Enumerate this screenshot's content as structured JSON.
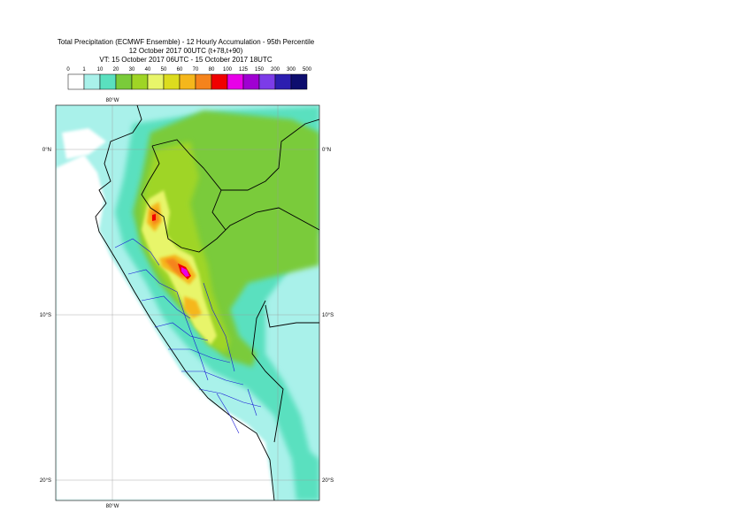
{
  "title": {
    "line1": "Total Precipitation (ECMWF Ensemble) - 12 Hourly Accumulation - 95th Percentile",
    "line2": "12 October 2017 00UTC (t+78,t+90)",
    "line3": "VT: 15 October 2017 06UTC - 15 October 2017 18UTC"
  },
  "legend": {
    "levels": [
      "0",
      "1",
      "10",
      "20",
      "30",
      "40",
      "50",
      "60",
      "70",
      "80",
      "100",
      "125",
      "150",
      "200",
      "300",
      "500"
    ],
    "colors": [
      "#ffffff",
      "#a9f1ea",
      "#5ae0bf",
      "#7acb3a",
      "#9fd525",
      "#e8f56a",
      "#dcdc1e",
      "#f5b71c",
      "#f5831c",
      "#f00000",
      "#e800e8",
      "#a000d2",
      "#7c3ce8",
      "#2c1eb0",
      "#0d0d6e"
    ]
  },
  "map": {
    "lon_labels": [
      "80°W",
      "80°W"
    ],
    "lat_labels": [
      "0°N",
      "10°S",
      "20°S"
    ],
    "lat_labels_right": [
      "0°N",
      "10°S",
      "20°S"
    ]
  }
}
